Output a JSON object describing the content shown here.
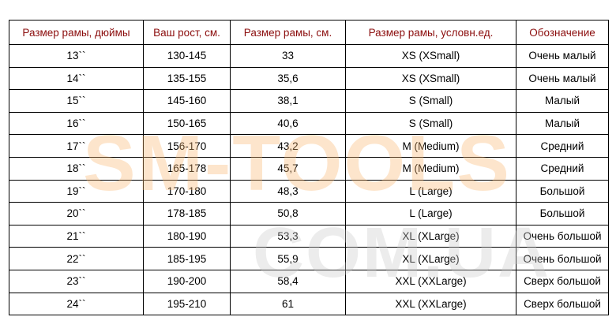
{
  "table": {
    "headers": [
      "Размер рамы, дюймы",
      "Ваш рост, см.",
      "Размер рамы, см.",
      "Размер рамы, условн.ед.",
      "Обозначение"
    ],
    "rows": [
      [
        "13``",
        "130-145",
        "33",
        "XS (XSmall)",
        "Очень малый"
      ],
      [
        "14``",
        "135-155",
        "35,6",
        "XS (XSmall)",
        "Очень малый"
      ],
      [
        "15``",
        "145-160",
        "38,1",
        "S (Small)",
        "Малый"
      ],
      [
        "16``",
        "150-165",
        "40,6",
        "S (Small)",
        "Малый"
      ],
      [
        "17``",
        "156-170",
        "43,2",
        "M (Medium)",
        "Средний"
      ],
      [
        "18``",
        "165-178",
        "45,7",
        "M (Medium)",
        "Средний"
      ],
      [
        "19``",
        "170-180",
        "48,3",
        "L (Large)",
        "Большой"
      ],
      [
        "20``",
        "178-185",
        "50,8",
        "L (Large)",
        "Большой"
      ],
      [
        "21``",
        "180-190",
        "53,3",
        "XL (XLarge)",
        "Очень большой"
      ],
      [
        "22``",
        "185-195",
        "55,9",
        "XL (XLarge)",
        "Очень большой"
      ],
      [
        "23``",
        "190-200",
        "58,4",
        "XXL (XXLarge)",
        "Сверх большой"
      ],
      [
        "24``",
        "195-210",
        "61",
        "XXL (XXLarge)",
        "Сверх большой"
      ]
    ]
  },
  "watermark": {
    "line1": "SM-TOOLS",
    "line2": "COM.UA"
  },
  "colors": {
    "header_text": "#8b0d0d"
  }
}
